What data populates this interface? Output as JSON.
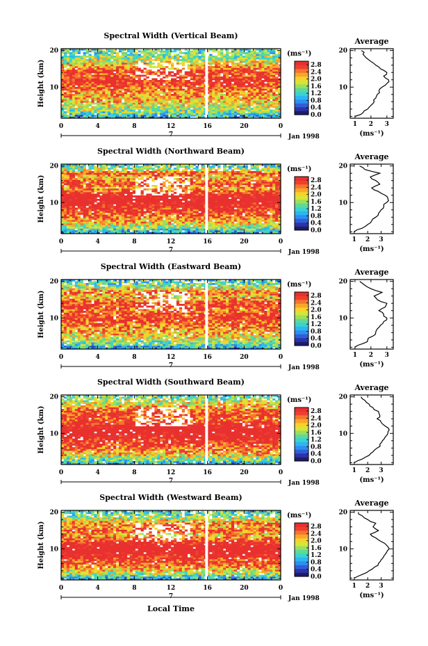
{
  "x_axis_label": "Local Time",
  "chart_data": [
    {
      "type": "heatmap",
      "title": "Spectral Width (Vertical Beam)",
      "ylabel": "Height (km)",
      "x_ticks": [
        "0",
        "4",
        "8",
        "12",
        "16",
        "20",
        "0"
      ],
      "y_ticks": [
        "20",
        "10"
      ],
      "xlim": [
        0,
        24
      ],
      "ylim": [
        1.5,
        20.5
      ],
      "date_label": "Jan 1998",
      "date_marker": "7",
      "colorbar": {
        "unit": "(ms⁻¹)",
        "ticks": [
          "2.8",
          "2.4",
          "2.0",
          "1.6",
          "1.2",
          "0.8",
          "0.4",
          "0.0"
        ],
        "range": [
          0,
          3.0
        ]
      },
      "data_gap_local_time": 15.9,
      "profile": {
        "title": "Average",
        "xlabel": "(ms⁻¹)",
        "x_ticks": [
          "1",
          "2",
          "3"
        ],
        "y_ticks": [
          "20",
          "10"
        ],
        "xlim": [
          0.7,
          3.4
        ],
        "ylim": [
          1.5,
          20.5
        ],
        "height": [
          2,
          3,
          4,
          5,
          6,
          7,
          8,
          9,
          10,
          11,
          12,
          13,
          14,
          15,
          16,
          17,
          18,
          19,
          20
        ],
        "width": [
          1.0,
          1.5,
          1.8,
          2.0,
          2.2,
          2.3,
          2.4,
          2.5,
          2.7,
          3.0,
          3.1,
          2.8,
          3.0,
          2.6,
          2.3,
          2.0,
          1.7,
          1.5,
          1.4
        ]
      }
    },
    {
      "type": "heatmap",
      "title": "Spectral Width (Northward Beam)",
      "ylabel": "Height (km)",
      "x_ticks": [
        "0",
        "4",
        "8",
        "12",
        "16",
        "20",
        "0"
      ],
      "y_ticks": [
        "20",
        "10"
      ],
      "xlim": [
        0,
        24
      ],
      "ylim": [
        1.5,
        20.5
      ],
      "date_label": "Jan 1998",
      "date_marker": "7",
      "colorbar": {
        "unit": "(ms⁻¹)",
        "ticks": [
          "2.8",
          "2.4",
          "2.0",
          "1.6",
          "1.2",
          "0.8",
          "0.4",
          "0.0"
        ],
        "range": [
          0,
          3.0
        ]
      },
      "data_gap_local_time": 15.9,
      "profile": {
        "title": "Average",
        "xlabel": "(ms⁻¹)",
        "x_ticks": [
          "1",
          "2",
          "3"
        ],
        "y_ticks": [
          "20",
          "10"
        ],
        "xlim": [
          0.7,
          3.9
        ],
        "ylim": [
          1.5,
          20.5
        ],
        "height": [
          2,
          3,
          4,
          5,
          6,
          7,
          8,
          9,
          10,
          11,
          12,
          13,
          14,
          15,
          16,
          17,
          18,
          19,
          20
        ],
        "width": [
          1.0,
          1.6,
          2.0,
          2.3,
          2.6,
          2.8,
          3.0,
          3.2,
          3.4,
          3.5,
          3.3,
          2.8,
          2.3,
          2.9,
          2.6,
          2.2,
          2.9,
          1.8,
          1.4
        ]
      }
    },
    {
      "type": "heatmap",
      "title": "Spectral Width (Eastward Beam)",
      "ylabel": "Height (km)",
      "x_ticks": [
        "0",
        "4",
        "8",
        "12",
        "16",
        "20",
        "0"
      ],
      "y_ticks": [
        "20",
        "10"
      ],
      "xlim": [
        0,
        24
      ],
      "ylim": [
        1.5,
        20.5
      ],
      "date_label": "Jan 1998",
      "date_marker": "7",
      "colorbar": {
        "unit": "(ms⁻¹)",
        "ticks": [
          "2.8",
          "2.4",
          "2.0",
          "1.6",
          "1.2",
          "0.8",
          "0.4",
          "0.0"
        ],
        "range": [
          0,
          3.0
        ]
      },
      "data_gap_local_time": 15.9,
      "profile": {
        "title": "Average",
        "xlabel": "(ms⁻¹)",
        "x_ticks": [
          "1",
          "2",
          "3"
        ],
        "y_ticks": [
          "20",
          "10"
        ],
        "xlim": [
          0.7,
          3.4
        ],
        "ylim": [
          1.5,
          20.5
        ],
        "height": [
          2,
          3,
          4,
          5,
          6,
          7,
          8,
          9,
          10,
          11,
          12,
          13,
          14,
          15,
          16,
          17,
          18,
          19,
          20
        ],
        "width": [
          1.0,
          1.5,
          1.8,
          2.1,
          2.3,
          2.4,
          2.6,
          2.8,
          3.0,
          2.8,
          2.5,
          2.9,
          3.0,
          2.4,
          2.2,
          2.7,
          2.0,
          1.6,
          1.3
        ]
      }
    },
    {
      "type": "heatmap",
      "title": "Spectral Width (Southward Beam)",
      "ylabel": "Height (km)",
      "x_ticks": [
        "0",
        "4",
        "8",
        "12",
        "16",
        "20",
        "0"
      ],
      "y_ticks": [
        "20",
        "10"
      ],
      "xlim": [
        0,
        24
      ],
      "ylim": [
        1.5,
        20.5
      ],
      "date_label": "Jan 1998",
      "date_marker": "7",
      "colorbar": {
        "unit": "(ms⁻¹)",
        "ticks": [
          "2.8",
          "2.4",
          "2.0",
          "1.6",
          "1.2",
          "0.8",
          "0.4",
          "0.0"
        ],
        "range": [
          0,
          3.0
        ]
      },
      "data_gap_local_time": 15.9,
      "profile": {
        "title": "Average",
        "xlabel": "(ms⁻¹)",
        "x_ticks": [
          "1",
          "2",
          "3"
        ],
        "y_ticks": [
          "20",
          "10"
        ],
        "xlim": [
          0.7,
          3.9
        ],
        "ylim": [
          1.5,
          20.5
        ],
        "height": [
          2,
          3,
          4,
          5,
          6,
          7,
          8,
          9,
          10,
          11,
          12,
          13,
          14,
          15,
          16,
          17,
          18,
          19,
          20
        ],
        "width": [
          1.0,
          1.6,
          2.1,
          2.4,
          2.7,
          2.9,
          3.1,
          3.3,
          3.5,
          3.6,
          3.3,
          3.0,
          2.7,
          2.9,
          2.8,
          2.4,
          2.1,
          1.8,
          1.5
        ]
      }
    },
    {
      "type": "heatmap",
      "title": "Spectral Width (Westward Beam)",
      "ylabel": "Height (km)",
      "x_ticks": [
        "0",
        "4",
        "8",
        "12",
        "16",
        "20",
        "0"
      ],
      "y_ticks": [
        "20",
        "10"
      ],
      "xlim": [
        0,
        24
      ],
      "ylim": [
        1.5,
        20.5
      ],
      "date_label": "Jan 1998",
      "date_marker": "7",
      "colorbar": {
        "unit": "(ms⁻¹)",
        "ticks": [
          "2.8",
          "2.4",
          "2.0",
          "1.6",
          "1.2",
          "0.8",
          "0.4",
          "0.0"
        ],
        "range": [
          0,
          3.0
        ]
      },
      "data_gap_local_time": 15.9,
      "profile": {
        "title": "Average",
        "xlabel": "(ms⁻¹)",
        "x_ticks": [
          "1",
          "2",
          "3"
        ],
        "y_ticks": [
          "20",
          "10"
        ],
        "xlim": [
          0.7,
          3.9
        ],
        "ylim": [
          1.5,
          20.5
        ],
        "height": [
          2,
          3,
          4,
          5,
          6,
          7,
          8,
          9,
          10,
          11,
          12,
          13,
          14,
          15,
          16,
          17,
          18,
          19,
          20
        ],
        "width": [
          1.0,
          1.6,
          2.1,
          2.5,
          2.8,
          3.0,
          3.2,
          3.4,
          3.6,
          3.4,
          3.0,
          2.6,
          2.2,
          2.8,
          2.4,
          2.6,
          2.0,
          1.6,
          1.3
        ]
      }
    }
  ]
}
